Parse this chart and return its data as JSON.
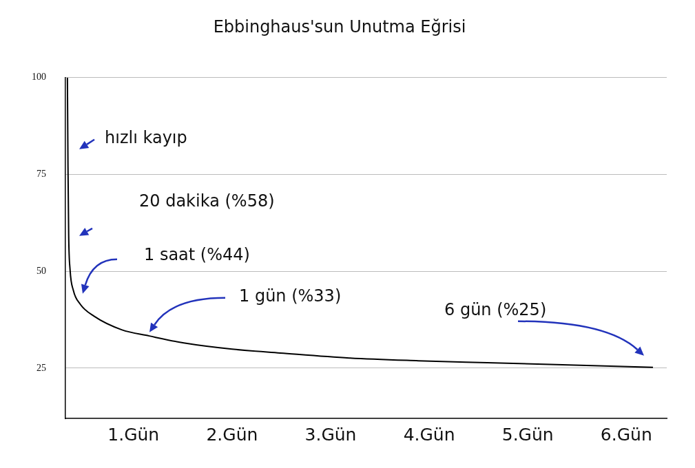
{
  "chart_data": {
    "type": "line",
    "title": "Ebbinghaus'sun Unutma Eğrisi",
    "x": [
      0.33,
      0.336,
      0.343,
      0.357,
      0.39,
      0.46,
      0.6,
      0.88,
      1.16,
      1.51,
      2.0,
      2.49,
      3.19,
      3.89,
      4.59,
      5.29,
      6.27
    ],
    "values": [
      100,
      76.8,
      59.2,
      50.4,
      45.1,
      41.5,
      38.4,
      34.9,
      33.3,
      31.5,
      29.9,
      28.9,
      27.6,
      26.9,
      26.4,
      25.9,
      25.2
    ],
    "color": "#000000",
    "xlim": [
      0.31,
      6.41
    ],
    "xticks": [
      {
        "value": 1,
        "label": "1.Gün"
      },
      {
        "value": 2,
        "label": "2.Gün"
      },
      {
        "value": 3,
        "label": "3.Gün"
      },
      {
        "value": 4,
        "label": "4.Gün"
      },
      {
        "value": 5,
        "label": "5.Gün"
      },
      {
        "value": 6,
        "label": "6.Gün"
      }
    ],
    "ylim": [
      12,
      100
    ],
    "yticks": [
      25,
      50,
      75,
      100
    ],
    "grid": "y",
    "legend": false,
    "marker": "none",
    "line_style": "solid",
    "annotations": [
      "hızlı kayıp",
      "20 dakika (%58)",
      "1 saat (%44)",
      "1 gün (%33)",
      "6 gün (%25)"
    ]
  }
}
